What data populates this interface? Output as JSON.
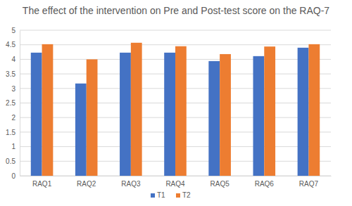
{
  "chart_data": {
    "type": "bar",
    "title": "The effect of the intervention on Pre and Post-test score on the RAQ-7",
    "categories": [
      "RAQ1",
      "RAQ2",
      "RAQ3",
      "RAQ4",
      "RAQ5",
      "RAQ6",
      "RAQ7"
    ],
    "series": [
      {
        "name": "T1",
        "color": "#4472c4",
        "values": [
          4.23,
          3.17,
          4.23,
          4.23,
          3.94,
          4.11,
          4.4
        ]
      },
      {
        "name": "T2",
        "color": "#ed7d31",
        "values": [
          4.52,
          4.0,
          4.57,
          4.45,
          4.18,
          4.44,
          4.52
        ]
      }
    ],
    "ylim": [
      0,
      5
    ],
    "yticks": [
      0,
      0.5,
      1,
      1.5,
      2,
      2.5,
      3,
      3.5,
      4,
      4.5,
      5
    ],
    "grid": true,
    "legend": "bottom"
  }
}
